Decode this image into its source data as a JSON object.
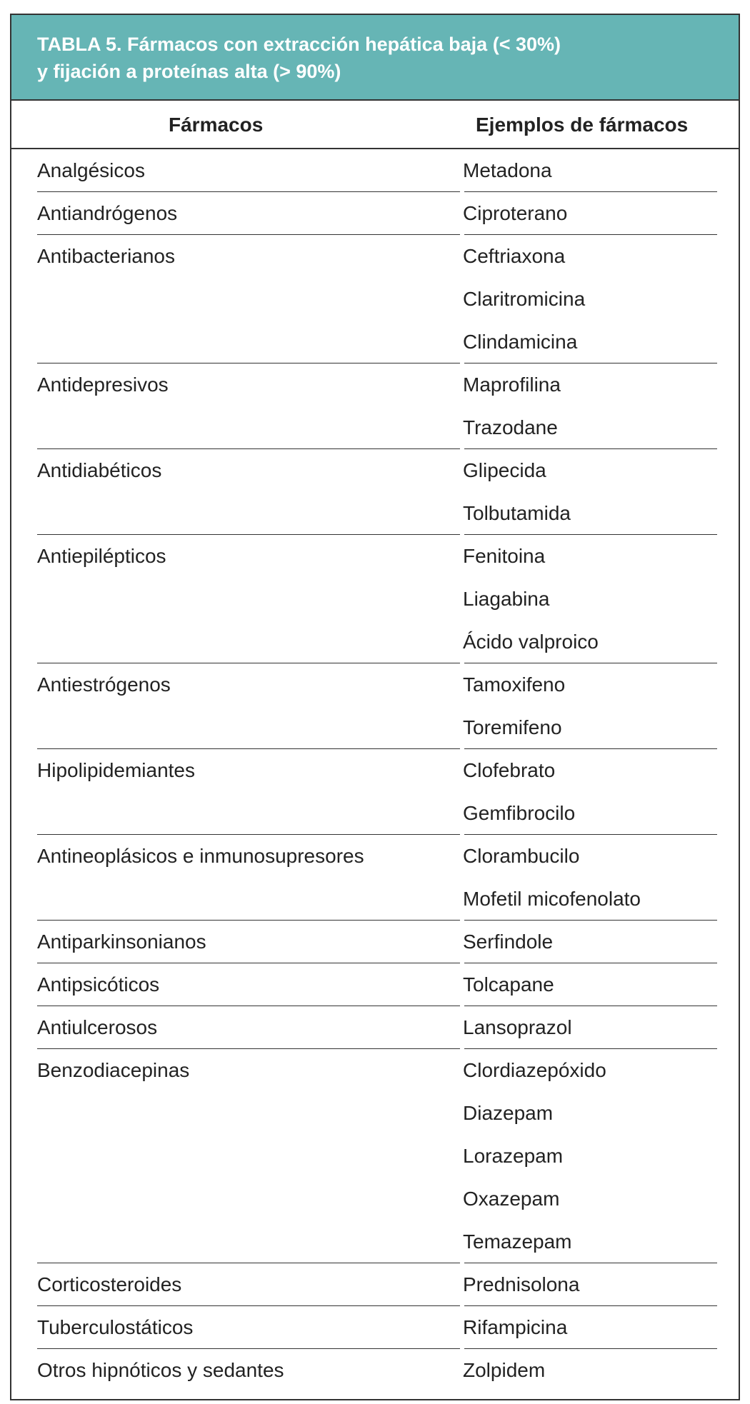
{
  "table": {
    "title_line1": "TABLA 5. Fármacos con extracción hepática baja (< 30%)",
    "title_line2": "y fijación a proteínas alta (> 90%)",
    "header_color": "#66b5b5",
    "columns": [
      "Fármacos",
      "Ejemplos de fármacos"
    ],
    "groups": [
      {
        "category": "Analgésicos",
        "drugs": [
          "Metadona"
        ]
      },
      {
        "category": "Antiandrógenos",
        "drugs": [
          "Ciproterano"
        ]
      },
      {
        "category": "Antibacterianos",
        "drugs": [
          "Ceftriaxona",
          "Claritromicina",
          "Clindamicina"
        ]
      },
      {
        "category": "Antidepresivos",
        "drugs": [
          "Maprofilina",
          "Trazodane"
        ]
      },
      {
        "category": "Antidiabéticos",
        "drugs": [
          "Glipecida",
          "Tolbutamida"
        ]
      },
      {
        "category": "Antiepilépticos",
        "drugs": [
          "Fenitoina",
          "Liagabina",
          "Ácido valproico"
        ]
      },
      {
        "category": "Antiestrógenos",
        "drugs": [
          "Tamoxifeno",
          "Toremifeno"
        ]
      },
      {
        "category": "Hipolipidemiantes",
        "drugs": [
          "Clofebrato",
          "Gemfibrocilo"
        ]
      },
      {
        "category": "Antineoplásicos e inmunosupresores",
        "drugs": [
          "Clorambucilo",
          "Mofetil micofenolato"
        ]
      },
      {
        "category": "Antiparkinsonianos",
        "drugs": [
          "Serfindole"
        ]
      },
      {
        "category": "Antipsicóticos",
        "drugs": [
          "Tolcapane"
        ]
      },
      {
        "category": "Antiulcerosos",
        "drugs": [
          "Lansoprazol"
        ]
      },
      {
        "category": "Benzodiacepinas",
        "drugs": [
          "Clordiazepóxido",
          "Diazepam",
          "Lorazepam",
          "Oxazepam",
          "Temazepam"
        ]
      },
      {
        "category": "Corticosteroides",
        "drugs": [
          "Prednisolona"
        ]
      },
      {
        "category": "Tuberculostáticos",
        "drugs": [
          "Rifampicina"
        ]
      },
      {
        "category": "Otros hipnóticos y sedantes",
        "drugs": [
          "Zolpidem"
        ]
      }
    ]
  }
}
